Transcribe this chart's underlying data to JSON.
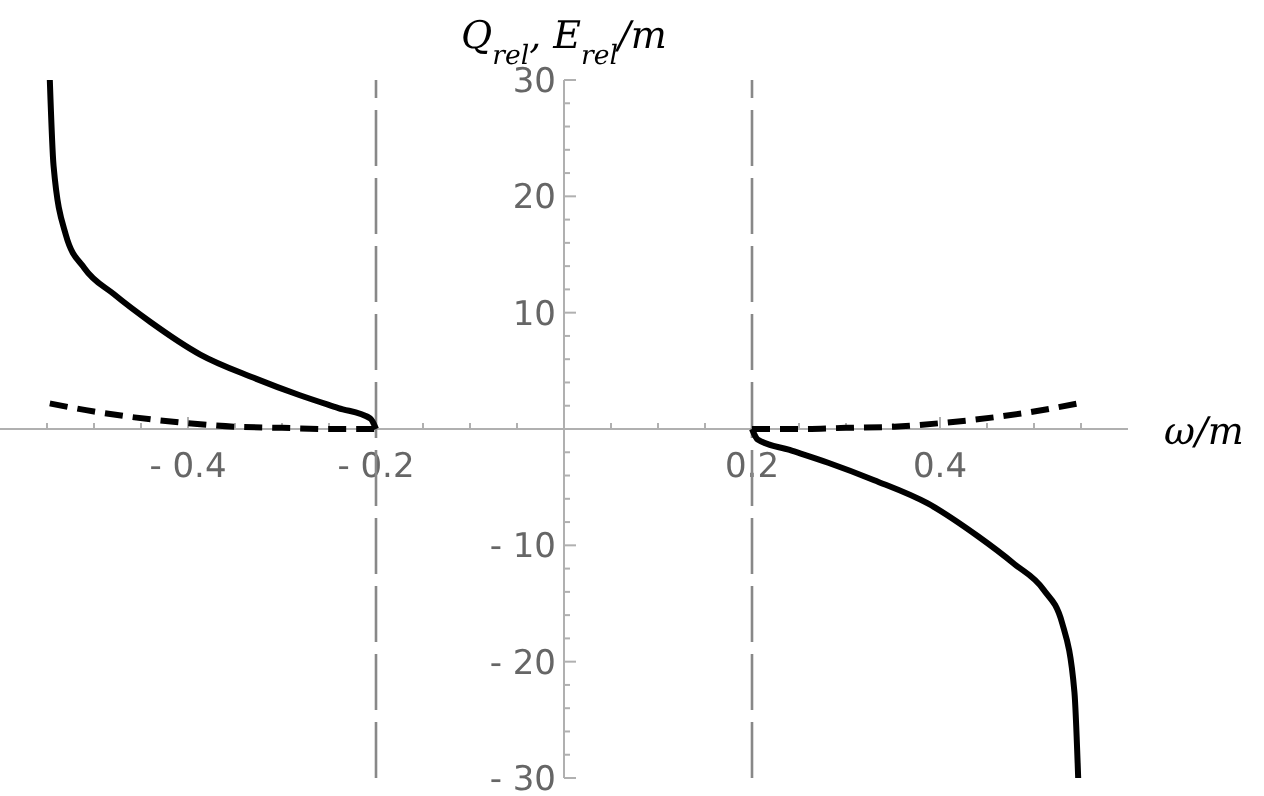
{
  "chart_data": {
    "type": "line",
    "xlabel": "ω/m",
    "ylabel": "Q$_{rel}$, E$_{rel}$/m",
    "xlim": [
      -0.6,
      0.6
    ],
    "ylim": [
      -30,
      30
    ],
    "xticks": [
      {
        "value": -0.55,
        "label": null
      },
      {
        "value": -0.5,
        "label": null
      },
      {
        "value": -0.45,
        "label": null
      },
      {
        "value": -0.4,
        "label": "- 0.4"
      },
      {
        "value": -0.35,
        "label": null
      },
      {
        "value": -0.3,
        "label": null
      },
      {
        "value": -0.25,
        "label": null
      },
      {
        "value": -0.2,
        "label": "- 0.2"
      },
      {
        "value": -0.15,
        "label": null
      },
      {
        "value": -0.1,
        "label": null
      },
      {
        "value": -0.05,
        "label": null
      },
      {
        "value": 0.05,
        "label": null
      },
      {
        "value": 0.1,
        "label": null
      },
      {
        "value": 0.15,
        "label": null
      },
      0.2,
      {
        "value": 0.25,
        "label": null
      },
      {
        "value": 0.3,
        "label": null
      },
      {
        "value": 0.35,
        "label": null
      },
      0.4,
      {
        "value": 0.45,
        "label": null
      },
      {
        "value": 0.5,
        "label": null
      },
      {
        "value": 0.55,
        "label": null
      }
    ],
    "yticks": [
      {
        "value": -30,
        "label": "- 30"
      },
      {
        "value": -28,
        "label": null
      },
      {
        "value": -26,
        "label": null
      },
      {
        "value": -24,
        "label": null
      },
      {
        "value": -22,
        "label": null
      },
      {
        "value": -20,
        "label": "- 20"
      },
      {
        "value": -18,
        "label": null
      },
      {
        "value": -16,
        "label": null
      },
      {
        "value": -14,
        "label": null
      },
      {
        "value": -12,
        "label": null
      },
      {
        "value": -10,
        "label": "- 10"
      },
      {
        "value": -8,
        "label": null
      },
      {
        "value": -6,
        "label": null
      },
      {
        "value": -4,
        "label": null
      },
      {
        "value": -2,
        "label": null
      },
      {
        "value": 2,
        "label": null
      },
      {
        "value": 4,
        "label": null
      },
      {
        "value": 6,
        "label": null
      },
      {
        "value": 8,
        "label": null
      },
      10,
      {
        "value": 12,
        "label": null
      },
      {
        "value": 14,
        "label": null
      },
      {
        "value": 16,
        "label": null
      },
      {
        "value": 18,
        "label": null
      },
      20,
      {
        "value": 22,
        "label": null
      },
      {
        "value": 24,
        "label": null
      },
      {
        "value": 26,
        "label": null
      },
      {
        "value": 28,
        "label": null
      },
      30
    ],
    "ref_lines": [
      {
        "axis": "x",
        "value": -0.2,
        "color": "#888888",
        "line_style": "dashed"
      },
      {
        "axis": "x",
        "value": 0.2,
        "color": "#888888",
        "line_style": "dashed"
      }
    ],
    "series": [
      {
        "color": "#000000",
        "line_style": "solid",
        "x": [
          -0.547,
          -0.543,
          -0.53,
          -0.51,
          -0.479,
          -0.44,
          -0.387,
          -0.33,
          -0.281,
          -0.24,
          -0.206,
          -0.2
        ],
        "values": [
          30,
          22.6,
          16.7,
          13.8,
          11.6,
          9.2,
          6.4,
          4.4,
          2.9,
          1.8,
          0.9,
          0
        ]
      },
      {
        "color": "#000000",
        "line_style": "solid",
        "x": [
          0.2,
          0.206,
          0.24,
          0.281,
          0.33,
          0.387,
          0.44,
          0.479,
          0.51,
          0.53,
          0.543,
          0.547
        ],
        "values": [
          0,
          -0.9,
          -1.8,
          -2.9,
          -4.4,
          -6.4,
          -9.2,
          -11.6,
          -13.8,
          -16.7,
          -22.6,
          -30
        ]
      },
      {
        "color": "#000000",
        "line_style": "dashed",
        "x": [
          -0.547,
          -0.5,
          -0.457,
          -0.4,
          -0.351,
          -0.3,
          -0.25,
          -0.2
        ],
        "values": [
          2.2,
          1.5,
          1.0,
          0.5,
          0.2,
          0.1,
          0,
          0
        ]
      },
      {
        "color": "#000000",
        "line_style": "dashed",
        "x": [
          0.2,
          0.25,
          0.3,
          0.351,
          0.4,
          0.457,
          0.5,
          0.547
        ],
        "values": [
          0,
          0,
          0.1,
          0.2,
          0.5,
          1.0,
          1.5,
          2.2
        ]
      }
    ]
  }
}
